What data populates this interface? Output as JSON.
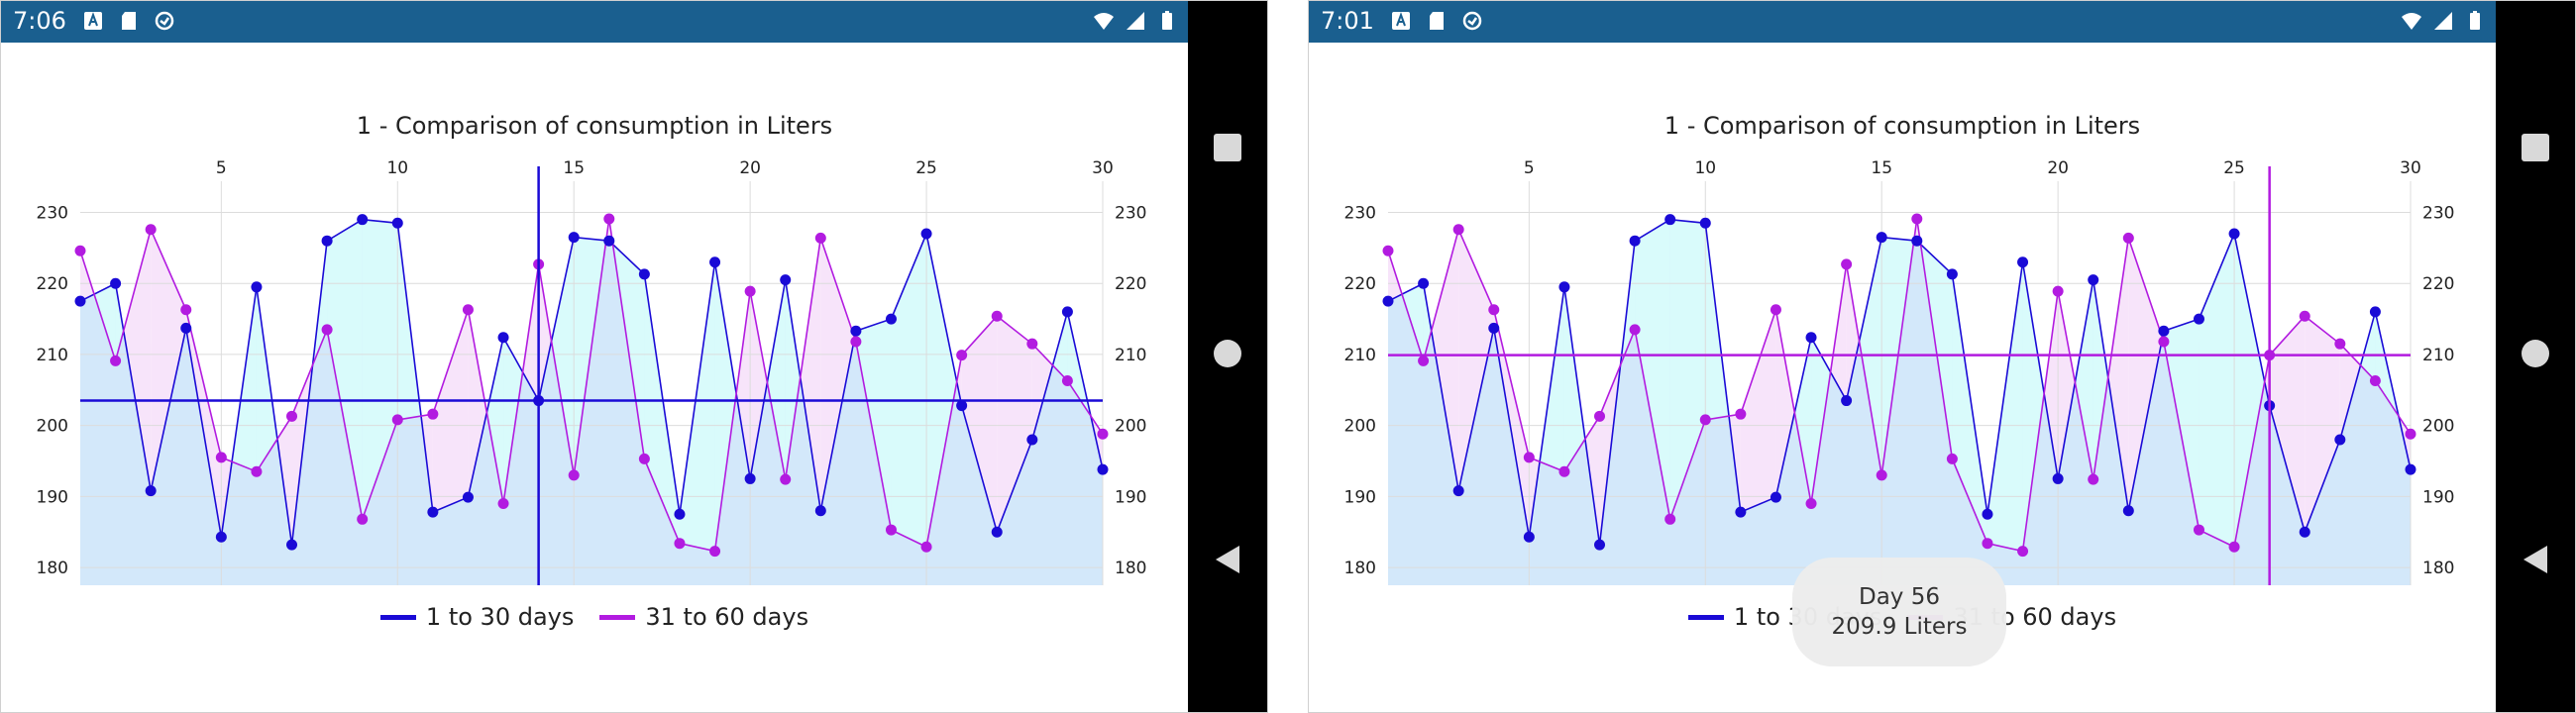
{
  "colors": {
    "status_bar": "#1a5f8f",
    "series1": "#1a0ad6",
    "series2": "#b21be0",
    "fill_light_blue": "#d3e8fa",
    "fill_cyan": "#d9fbfb",
    "fill_pink": "#f7e4fa",
    "grid": "#dcdcdc"
  },
  "screens": [
    {
      "status": {
        "time": "7:06",
        "left_icons": [
          "a-icon",
          "sd-card-icon",
          "sync-icon"
        ],
        "right_icons": [
          "wifi-icon",
          "signal-icon",
          "battery-icon"
        ]
      },
      "crosshair": {
        "series": "series1",
        "day": 14,
        "value": 203.5
      },
      "tooltip": null
    },
    {
      "status": {
        "time": "7:01",
        "left_icons": [
          "a-icon",
          "sd-card-icon",
          "sync-icon"
        ],
        "right_icons": [
          "wifi-icon",
          "signal-icon",
          "battery-icon"
        ]
      },
      "crosshair": {
        "series": "series2",
        "day": 26,
        "value": 209.9
      },
      "tooltip": {
        "line1": "Day 56",
        "line2": "209.9 Liters"
      }
    }
  ],
  "nav_buttons": [
    "recent-apps-icon",
    "home-icon",
    "back-icon"
  ],
  "chart_data": {
    "type": "line",
    "title": "1 - Comparison of consumption in Liters",
    "x": [
      1,
      2,
      3,
      4,
      5,
      6,
      7,
      8,
      9,
      10,
      11,
      12,
      13,
      14,
      15,
      16,
      17,
      18,
      19,
      20,
      21,
      22,
      23,
      24,
      25,
      26,
      27,
      28,
      29,
      30
    ],
    "xlim": [
      1,
      30
    ],
    "ylim": [
      177.5,
      233
    ],
    "x_ticks": [
      5,
      10,
      15,
      20,
      25,
      30
    ],
    "y_ticks": [
      180,
      190,
      200,
      210,
      220,
      230
    ],
    "x_axis_position": "top",
    "y_axis_position": "both",
    "grid": true,
    "legend_position": "bottom",
    "series": [
      {
        "name": "1 to 30 days",
        "values": [
          217.5,
          220,
          190.8,
          213.7,
          184.3,
          219.5,
          183.2,
          226,
          229,
          228.5,
          187.8,
          189.9,
          212.4,
          203.5,
          226.5,
          226,
          221.3,
          187.5,
          223,
          192.5,
          220.5,
          188,
          213.3,
          215,
          227,
          202.8,
          185,
          198,
          216,
          193.8
        ]
      },
      {
        "name": "31 to 60 days",
        "values": [
          224.6,
          209.1,
          227.6,
          216.3,
          195.5,
          193.5,
          201.3,
          213.5,
          186.8,
          200.8,
          201.6,
          216.3,
          189,
          222.7,
          193,
          229.1,
          195.3,
          183.4,
          182.3,
          218.9,
          192.4,
          226.4,
          211.8,
          185.3,
          182.9,
          209.9,
          215.4,
          211.5,
          206.3,
          198.8
        ]
      }
    ]
  }
}
